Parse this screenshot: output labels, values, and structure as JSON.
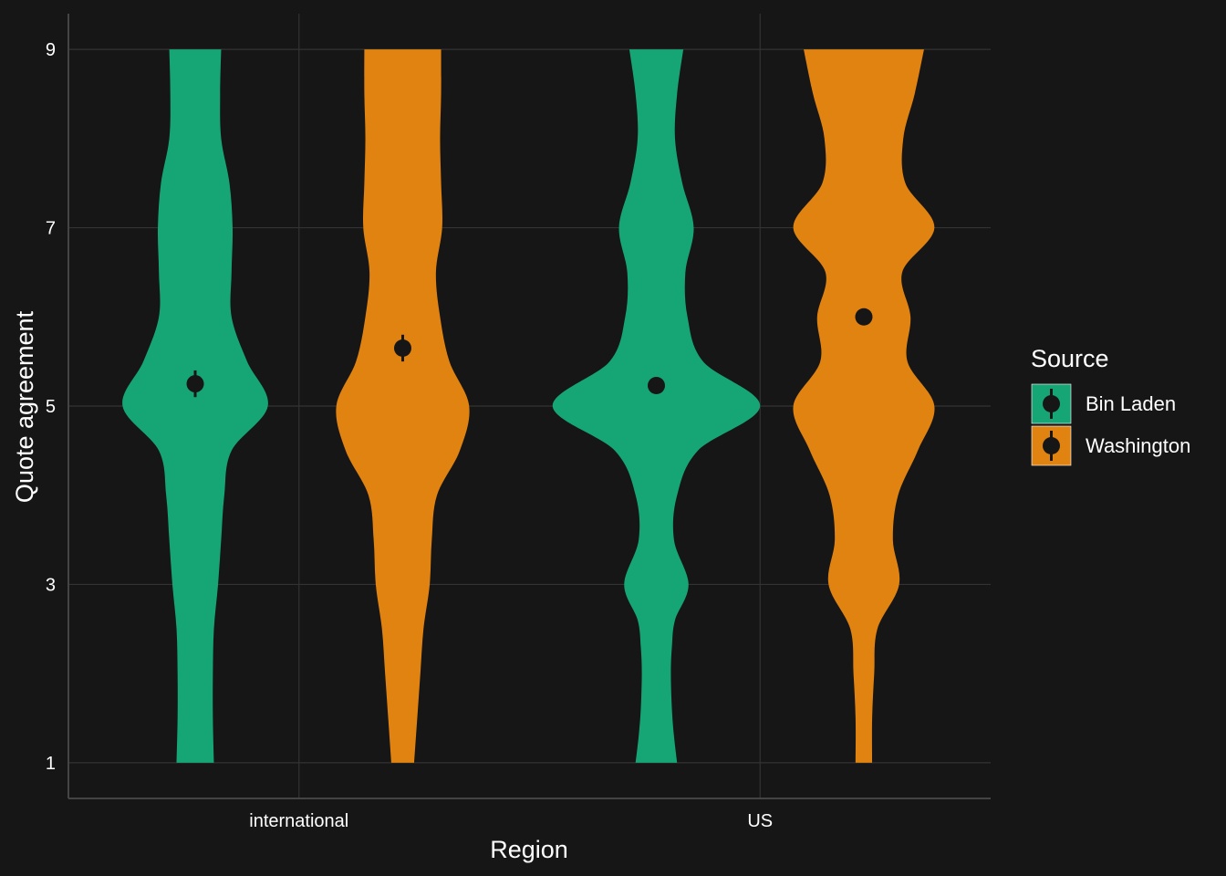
{
  "chart_data": {
    "type": "violin",
    "title": "",
    "xlabel": "Region",
    "ylabel": "Quote agreement",
    "categories": [
      "international",
      "US"
    ],
    "ylim": [
      0.6,
      9.4
    ],
    "yticks": [
      1,
      3,
      5,
      7,
      9
    ],
    "ytick_labels": [
      "1",
      "3",
      "5",
      "7",
      "9"
    ],
    "grid": true,
    "legend": {
      "title": "Source",
      "position": "right",
      "items": [
        {
          "label": "Bin Laden",
          "color": "#16a676"
        },
        {
          "label": "Washington",
          "color": "#e08311"
        }
      ]
    },
    "series": [
      {
        "name": "Bin Laden",
        "color": "#16a676",
        "means": [
          5.25,
          5.23
        ],
        "ci": [
          [
            5.1,
            5.4
          ],
          [
            5.15,
            5.31
          ]
        ],
        "violins": [
          {
            "category": "international",
            "density": [
              [
                1,
                0.18
              ],
              [
                1.5,
                0.17
              ],
              [
                2,
                0.17
              ],
              [
                2.5,
                0.18
              ],
              [
                3,
                0.22
              ],
              [
                3.5,
                0.25
              ],
              [
                4,
                0.28
              ],
              [
                4.5,
                0.35
              ],
              [
                5,
                0.7
              ],
              [
                5.5,
                0.5
              ],
              [
                6,
                0.35
              ],
              [
                6.5,
                0.35
              ],
              [
                7,
                0.36
              ],
              [
                7.5,
                0.33
              ],
              [
                8,
                0.25
              ],
              [
                8.5,
                0.24
              ],
              [
                9,
                0.25
              ]
            ]
          },
          {
            "category": "US",
            "density": [
              [
                1,
                0.2
              ],
              [
                1.3,
                0.17
              ],
              [
                1.6,
                0.15
              ],
              [
                2,
                0.14
              ],
              [
                2.3,
                0.15
              ],
              [
                2.6,
                0.18
              ],
              [
                3,
                0.31
              ],
              [
                3.5,
                0.17
              ],
              [
                4,
                0.2
              ],
              [
                4.5,
                0.4
              ],
              [
                5,
                1.0
              ],
              [
                5.5,
                0.45
              ],
              [
                6,
                0.3
              ],
              [
                6.5,
                0.28
              ],
              [
                7,
                0.36
              ],
              [
                7.5,
                0.25
              ],
              [
                8,
                0.18
              ],
              [
                8.5,
                0.2
              ],
              [
                9,
                0.26
              ]
            ]
          }
        ]
      },
      {
        "name": "Washington",
        "color": "#e08311",
        "means": [
          5.65,
          6.0
        ],
        "ci": [
          [
            5.5,
            5.8
          ],
          [
            5.93,
            6.07
          ]
        ],
        "violins": [
          {
            "category": "international",
            "density": [
              [
                1,
                0.11
              ],
              [
                1.5,
                0.14
              ],
              [
                2,
                0.17
              ],
              [
                2.5,
                0.2
              ],
              [
                3,
                0.26
              ],
              [
                3.5,
                0.28
              ],
              [
                4,
                0.33
              ],
              [
                4.5,
                0.55
              ],
              [
                5,
                0.64
              ],
              [
                5.5,
                0.45
              ],
              [
                6,
                0.36
              ],
              [
                6.5,
                0.32
              ],
              [
                7,
                0.38
              ],
              [
                7.5,
                0.37
              ],
              [
                8,
                0.36
              ],
              [
                8.5,
                0.37
              ],
              [
                9,
                0.37
              ]
            ]
          },
          {
            "category": "US",
            "density": [
              [
                1,
                0.08
              ],
              [
                1.5,
                0.08
              ],
              [
                2,
                0.1
              ],
              [
                2.5,
                0.13
              ],
              [
                3,
                0.34
              ],
              [
                3.5,
                0.28
              ],
              [
                4,
                0.33
              ],
              [
                4.5,
                0.52
              ],
              [
                5,
                0.68
              ],
              [
                5.5,
                0.42
              ],
              [
                6,
                0.45
              ],
              [
                6.5,
                0.37
              ],
              [
                7,
                0.68
              ],
              [
                7.5,
                0.4
              ],
              [
                8,
                0.38
              ],
              [
                8.5,
                0.49
              ],
              [
                9,
                0.58
              ]
            ]
          }
        ]
      }
    ]
  }
}
